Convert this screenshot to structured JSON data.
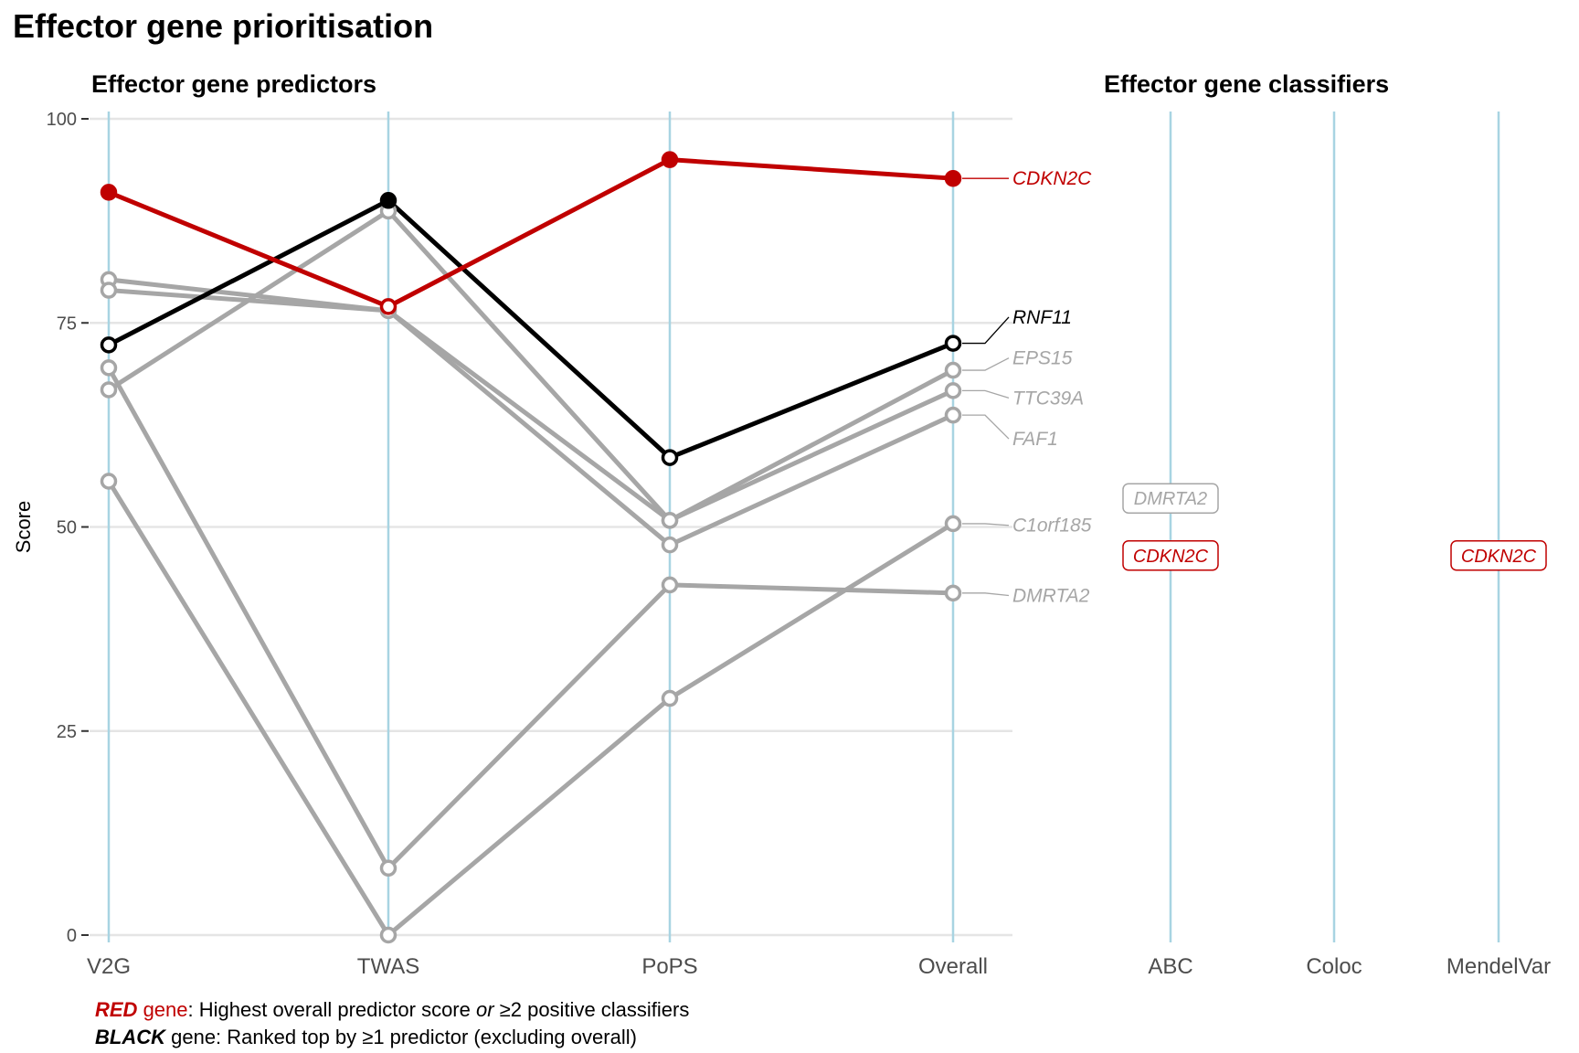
{
  "title": "Effector gene prioritisation",
  "colors": {
    "red": "#C00000",
    "black": "#000000",
    "grey": "#A6A6A6",
    "axis_line": "#A8D4E2",
    "grid": "#E5E5E5"
  },
  "chart_data": [
    {
      "type": "line",
      "title": "Effector gene predictors",
      "ylabel": "Score",
      "ylim": [
        0,
        100
      ],
      "yticks": [
        0,
        25,
        50,
        75,
        100
      ],
      "categories": [
        "V2G",
        "TWAS",
        "PoPS",
        "Overall"
      ],
      "grid": true,
      "series": [
        {
          "name": "CDKN2C",
          "color": "red",
          "values": [
            91,
            77,
            95,
            92.7
          ],
          "filled": [
            true,
            false,
            true,
            true
          ]
        },
        {
          "name": "RNF11",
          "color": "black",
          "values": [
            72.3,
            90,
            58.5,
            72.5
          ],
          "filled": [
            false,
            true,
            false,
            false
          ]
        },
        {
          "name": "EPS15",
          "color": "grey",
          "values": [
            80.3,
            76.5,
            50.8,
            69.2
          ]
        },
        {
          "name": "TTC39A",
          "color": "grey",
          "values": [
            66.8,
            88.7,
            50.8,
            66.7
          ]
        },
        {
          "name": "FAF1",
          "color": "grey",
          "values": [
            79,
            76.5,
            47.8,
            63.7
          ]
        },
        {
          "name": "C1orf185",
          "color": "grey",
          "values": [
            55.6,
            0,
            29,
            50.4
          ]
        },
        {
          "name": "DMRTA2",
          "color": "grey",
          "values": [
            69.5,
            8.2,
            42.9,
            41.9
          ]
        }
      ],
      "end_labels": [
        {
          "text": "CDKN2C",
          "color": "red",
          "label_y": 92.7
        },
        {
          "text": "RNF11",
          "color": "black",
          "label_y": 75.7
        },
        {
          "text": "EPS15",
          "color": "grey",
          "label_y": 70.7
        },
        {
          "text": "TTC39A",
          "color": "grey",
          "label_y": 65.8
        },
        {
          "text": "FAF1",
          "color": "grey",
          "label_y": 60.8
        },
        {
          "text": "C1orf185",
          "color": "grey",
          "label_y": 50.2
        },
        {
          "text": "DMRTA2",
          "color": "grey",
          "label_y": 41.6
        }
      ]
    },
    {
      "type": "table",
      "title": "Effector gene classifiers",
      "categories": [
        "ABC",
        "Coloc",
        "MendelVar"
      ],
      "labels": [
        {
          "category": "ABC",
          "text": "DMRTA2",
          "color": "grey",
          "y": 53.5
        },
        {
          "category": "ABC",
          "text": "CDKN2C",
          "color": "red",
          "y": 46.5
        },
        {
          "category": "MendelVar",
          "text": "CDKN2C",
          "color": "red",
          "y": 46.5
        }
      ]
    }
  ],
  "legend": {
    "red_word": "RED",
    "red_gene": " gene",
    "red_text_a": ": Highest overall predictor score ",
    "red_or": "or",
    "red_text_b": " ≥2 positive classifiers",
    "black_word": "BLACK",
    "black_text": " gene: Ranked top by ≥1 predictor (excluding overall)"
  }
}
